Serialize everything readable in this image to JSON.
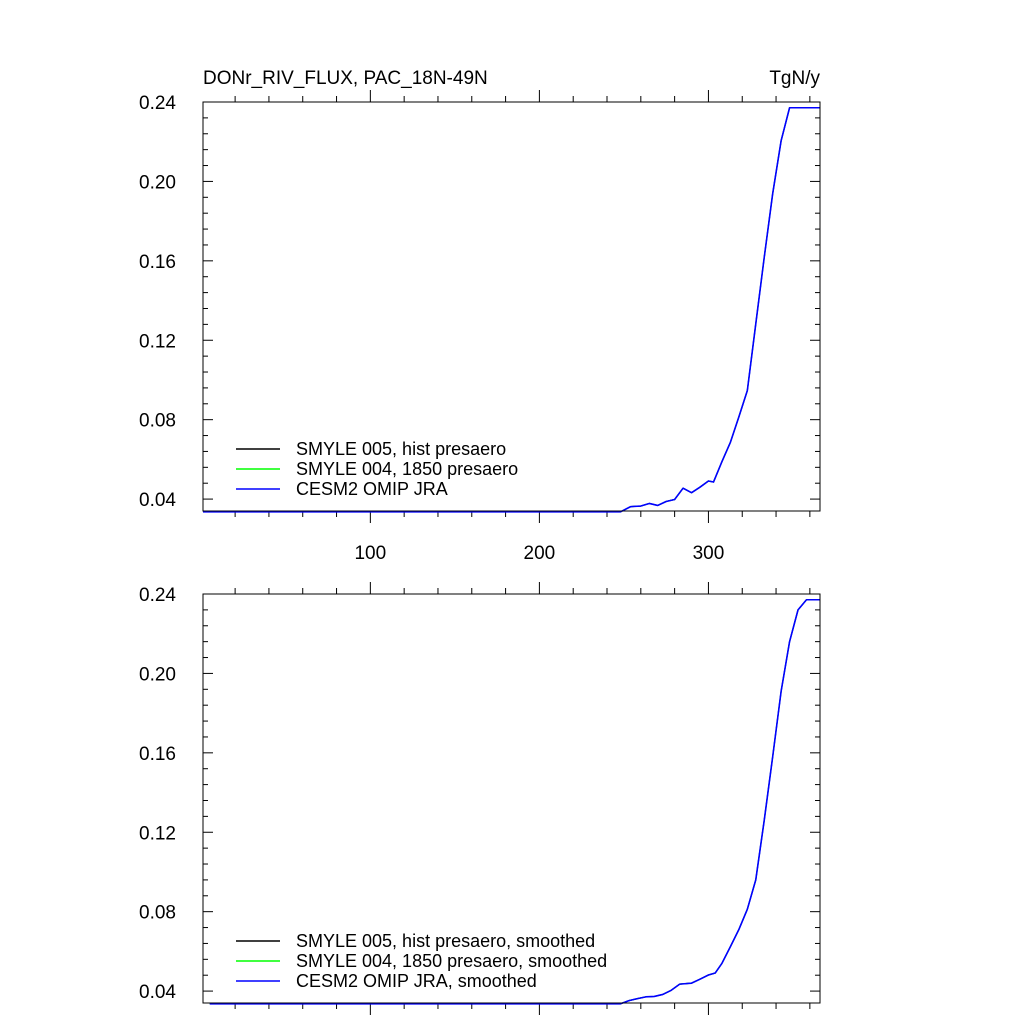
{
  "chart_data": [
    {
      "type": "line",
      "title": "DONr_RIV_FLUX, PAC_18N-49N",
      "units": "TgN/y",
      "xlim": [
        1,
        366
      ],
      "ylim": [
        0.034,
        0.24
      ],
      "x_ticks": [
        100,
        200,
        300
      ],
      "x_ticklabels": [
        "100",
        "200",
        "300"
      ],
      "y_ticks": [
        0.04,
        0.08,
        0.12,
        0.16,
        0.2,
        0.24
      ],
      "y_ticklabels": [
        "0.04",
        "0.08",
        "0.12",
        "0.16",
        "0.20",
        "0.24"
      ],
      "legend_position": "bottom-left",
      "series": [
        {
          "name": "SMYLE 005, hist presaero",
          "color": "#000000",
          "points": [
            [
              1,
              0.0336
            ],
            [
              248,
              0.0336
            ],
            [
              254,
              0.0362
            ],
            [
              260,
              0.0365
            ],
            [
              265,
              0.0378
            ],
            [
              270,
              0.0368
            ],
            [
              275,
              0.0388
            ],
            [
              280,
              0.0398
            ],
            [
              285,
              0.0455
            ],
            [
              290,
              0.0432
            ],
            [
              295,
              0.046
            ],
            [
              300,
              0.0491
            ],
            [
              303,
              0.0486
            ],
            [
              308,
              0.0589
            ],
            [
              313,
              0.0686
            ],
            [
              318,
              0.0814
            ],
            [
              323,
              0.0946
            ],
            [
              328,
              0.1282
            ],
            [
              333,
              0.1617
            ],
            [
              338,
              0.1938
            ],
            [
              343,
              0.2205
            ],
            [
              348,
              0.2371
            ],
            [
              353,
              0.2371
            ],
            [
              366,
              0.2371
            ]
          ]
        },
        {
          "name": "SMYLE 004, 1850 presaero",
          "color": "#00ff00",
          "points": [
            [
              1,
              0.0336
            ],
            [
              248,
              0.0336
            ],
            [
              254,
              0.0362
            ],
            [
              260,
              0.0365
            ],
            [
              265,
              0.0378
            ],
            [
              270,
              0.0368
            ],
            [
              275,
              0.0388
            ],
            [
              280,
              0.0398
            ],
            [
              285,
              0.0455
            ],
            [
              290,
              0.0432
            ],
            [
              295,
              0.046
            ],
            [
              300,
              0.0491
            ],
            [
              303,
              0.0486
            ],
            [
              308,
              0.0589
            ],
            [
              313,
              0.0686
            ],
            [
              318,
              0.0814
            ],
            [
              323,
              0.0946
            ],
            [
              328,
              0.1282
            ],
            [
              333,
              0.1617
            ],
            [
              338,
              0.1938
            ],
            [
              343,
              0.2205
            ],
            [
              348,
              0.2371
            ],
            [
              353,
              0.2371
            ],
            [
              366,
              0.2371
            ]
          ]
        },
        {
          "name": "CESM2 OMIP JRA",
          "color": "#0000ff",
          "points": [
            [
              1,
              0.0336
            ],
            [
              248,
              0.0336
            ],
            [
              254,
              0.0362
            ],
            [
              260,
              0.0365
            ],
            [
              265,
              0.0378
            ],
            [
              270,
              0.0368
            ],
            [
              275,
              0.0388
            ],
            [
              280,
              0.0398
            ],
            [
              285,
              0.0455
            ],
            [
              290,
              0.0432
            ],
            [
              295,
              0.046
            ],
            [
              300,
              0.0491
            ],
            [
              303,
              0.0486
            ],
            [
              308,
              0.0589
            ],
            [
              313,
              0.0686
            ],
            [
              318,
              0.0814
            ],
            [
              323,
              0.0946
            ],
            [
              328,
              0.1282
            ],
            [
              333,
              0.1617
            ],
            [
              338,
              0.1938
            ],
            [
              343,
              0.2205
            ],
            [
              348,
              0.2371
            ],
            [
              353,
              0.2371
            ],
            [
              366,
              0.2371
            ]
          ]
        }
      ]
    },
    {
      "type": "line",
      "title": "",
      "xlim": [
        1,
        366
      ],
      "ylim": [
        0.034,
        0.24
      ],
      "x_ticks": [
        100,
        200,
        300
      ],
      "y_ticks": [
        0.04,
        0.08,
        0.12,
        0.16,
        0.2,
        0.24
      ],
      "y_ticklabels": [
        "0.04",
        "0.08",
        "0.12",
        "0.16",
        "0.20",
        "0.24"
      ],
      "legend_position": "bottom-left",
      "series": [
        {
          "name": "SMYLE 005, hist presaero, smoothed",
          "color": "#000000",
          "points": [
            [
              5,
              0.0336
            ],
            [
              248,
              0.0336
            ],
            [
              253,
              0.0352
            ],
            [
              258,
              0.0362
            ],
            [
              263,
              0.0371
            ],
            [
              268,
              0.0373
            ],
            [
              273,
              0.0383
            ],
            [
              278,
              0.0404
            ],
            [
              283,
              0.0435
            ],
            [
              290,
              0.044
            ],
            [
              295,
              0.046
            ],
            [
              300,
              0.0481
            ],
            [
              304,
              0.0491
            ],
            [
              308,
              0.054
            ],
            [
              313,
              0.0624
            ],
            [
              318,
              0.071
            ],
            [
              323,
              0.0812
            ],
            [
              328,
              0.096
            ],
            [
              333,
              0.126
            ],
            [
              338,
              0.158
            ],
            [
              343,
              0.191
            ],
            [
              348,
              0.216
            ],
            [
              353,
              0.232
            ],
            [
              358,
              0.2371
            ],
            [
              366,
              0.2371
            ]
          ]
        },
        {
          "name": "SMYLE 004, 1850 presaero, smoothed",
          "color": "#00ff00",
          "points": [
            [
              5,
              0.0336
            ],
            [
              248,
              0.0336
            ],
            [
              253,
              0.0352
            ],
            [
              258,
              0.0362
            ],
            [
              263,
              0.0371
            ],
            [
              268,
              0.0373
            ],
            [
              273,
              0.0383
            ],
            [
              278,
              0.0404
            ],
            [
              283,
              0.0435
            ],
            [
              290,
              0.044
            ],
            [
              295,
              0.046
            ],
            [
              300,
              0.0481
            ],
            [
              304,
              0.0491
            ],
            [
              308,
              0.054
            ],
            [
              313,
              0.0624
            ],
            [
              318,
              0.071
            ],
            [
              323,
              0.0812
            ],
            [
              328,
              0.096
            ],
            [
              333,
              0.126
            ],
            [
              338,
              0.158
            ],
            [
              343,
              0.191
            ],
            [
              348,
              0.216
            ],
            [
              353,
              0.232
            ],
            [
              358,
              0.2371
            ],
            [
              366,
              0.2371
            ]
          ]
        },
        {
          "name": "CESM2 OMIP JRA, smoothed",
          "color": "#0000ff",
          "points": [
            [
              5,
              0.0336
            ],
            [
              248,
              0.0336
            ],
            [
              253,
              0.0352
            ],
            [
              258,
              0.0362
            ],
            [
              263,
              0.0371
            ],
            [
              268,
              0.0373
            ],
            [
              273,
              0.0383
            ],
            [
              278,
              0.0404
            ],
            [
              283,
              0.0435
            ],
            [
              290,
              0.044
            ],
            [
              295,
              0.046
            ],
            [
              300,
              0.0481
            ],
            [
              304,
              0.0491
            ],
            [
              308,
              0.054
            ],
            [
              313,
              0.0624
            ],
            [
              318,
              0.071
            ],
            [
              323,
              0.0812
            ],
            [
              328,
              0.096
            ],
            [
              333,
              0.126
            ],
            [
              338,
              0.158
            ],
            [
              343,
              0.191
            ],
            [
              348,
              0.216
            ],
            [
              353,
              0.232
            ],
            [
              358,
              0.2371
            ],
            [
              366,
              0.2371
            ]
          ]
        }
      ]
    }
  ]
}
